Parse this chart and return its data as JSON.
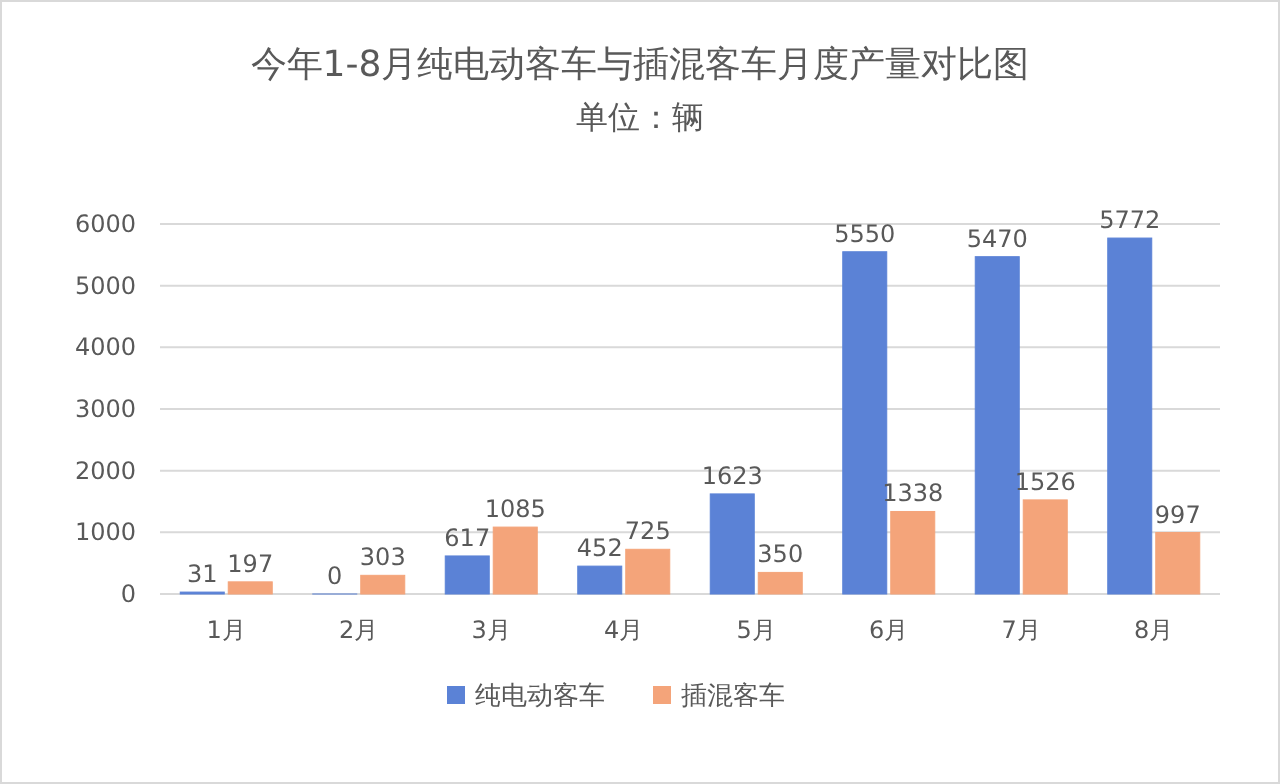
{
  "chart_data": {
    "type": "bar",
    "title": "今年1-8月纯电动客车与插混客车月度产量对比图",
    "subtitle": "单位：辆",
    "categories": [
      "1月",
      "2月",
      "3月",
      "4月",
      "5月",
      "6月",
      "7月",
      "8月"
    ],
    "series": [
      {
        "name": "纯电动客车",
        "color": "#5b82d6",
        "values": [
          31,
          0,
          617,
          452,
          1623,
          5550,
          5470,
          5772
        ]
      },
      {
        "name": "插混客车",
        "color": "#f4a47a",
        "values": [
          197,
          303,
          1085,
          725,
          350,
          1338,
          1526,
          997
        ]
      }
    ],
    "ylim": [
      0,
      6000
    ],
    "yticks": [
      0,
      1000,
      2000,
      3000,
      4000,
      5000,
      6000
    ],
    "grid": "y",
    "legend": "bottom",
    "data_labels": true
  }
}
